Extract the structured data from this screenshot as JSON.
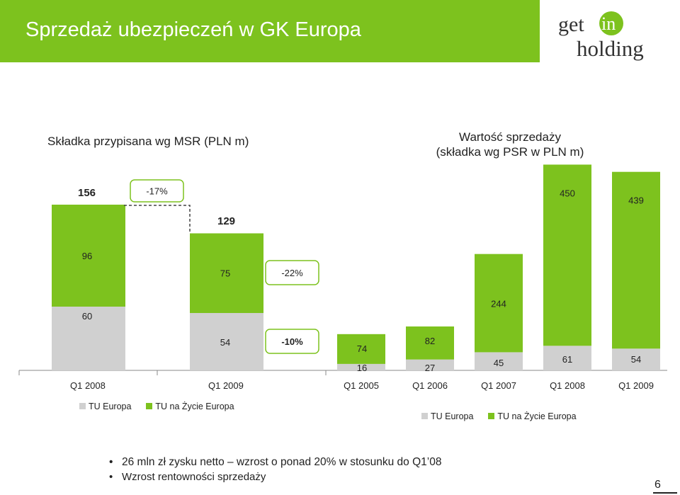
{
  "title": "Sprzedaż ubezpieczeń w GK Europa",
  "logo": {
    "text_top": "get in",
    "text_bottom": "holding"
  },
  "colors": {
    "accent": "#7dc21e",
    "grey": "#d0d0d0"
  },
  "chart_data": [
    {
      "type": "bar",
      "stacked": true,
      "title": "Składka przypisana wg MSR (PLN m)",
      "categories": [
        "Q1 2008",
        "Q1 2009"
      ],
      "series": [
        {
          "name": "TU Europa",
          "values": [
            60,
            54
          ]
        },
        {
          "name": "TU na Życie Europa",
          "values": [
            96,
            75
          ]
        }
      ],
      "totals": [
        156,
        129
      ],
      "annotations": {
        "total_change": "-17%",
        "life_change": "-22%",
        "property_change": "-10%"
      },
      "legend": "bottom"
    },
    {
      "type": "bar",
      "stacked": true,
      "title": [
        "Wartość sprzedaży",
        "(składka wg PSR w PLN m)"
      ],
      "categories": [
        "Q1 2005",
        "Q1 2006",
        "Q1 2007",
        "Q1 2008",
        "Q1 2009"
      ],
      "series": [
        {
          "name": "TU Europa",
          "values": [
            16,
            27,
            45,
            61,
            54
          ]
        },
        {
          "name": "TU na Życie Europa",
          "values": [
            74,
            82,
            244,
            450,
            439
          ]
        }
      ],
      "legend": "bottom"
    }
  ],
  "bullets": [
    "26 mln zł zysku netto – wzrost o ponad 20% w stosunku do Q1’08",
    "Wzrost rentowności sprzedaży"
  ],
  "page_number": "6"
}
